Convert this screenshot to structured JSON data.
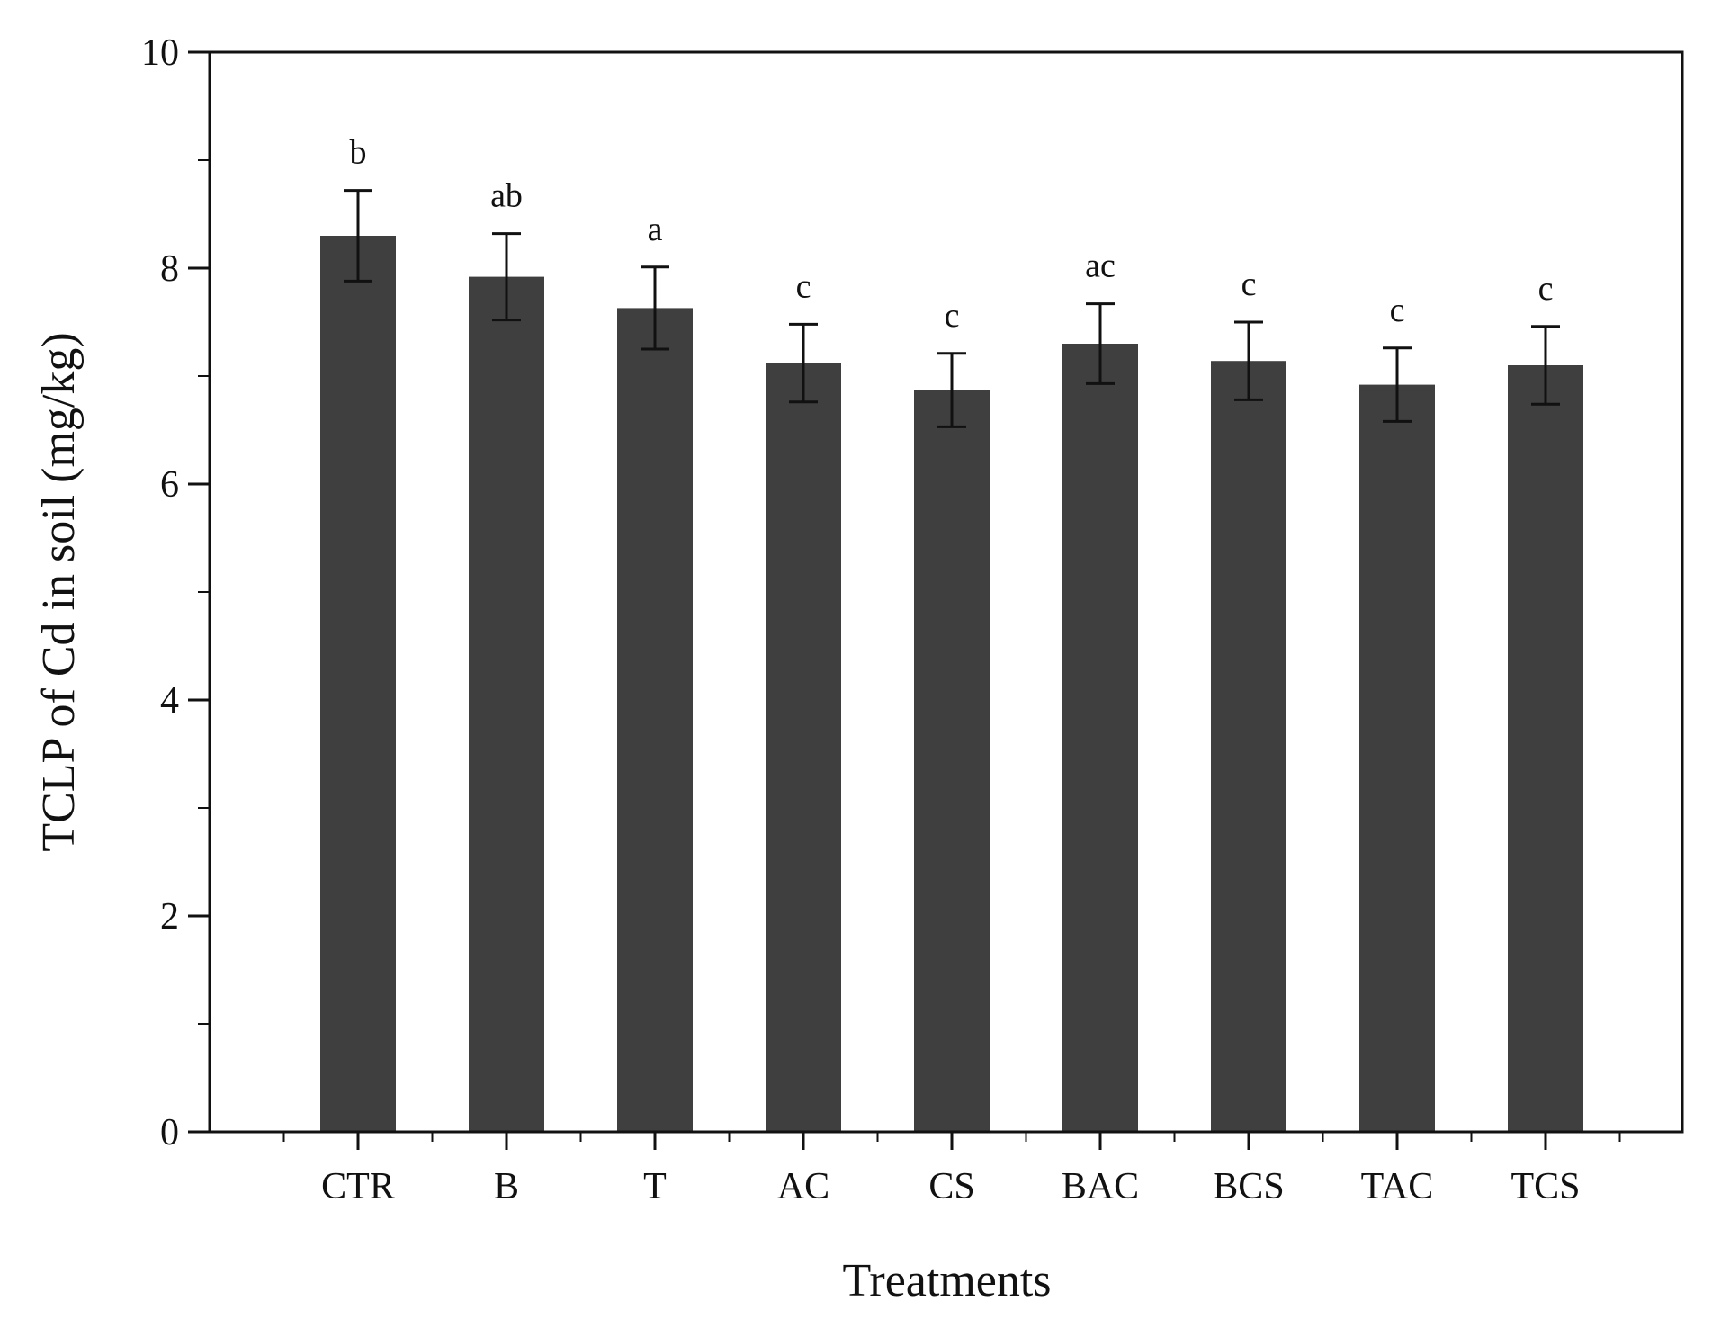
{
  "chart_data": {
    "type": "bar",
    "categories": [
      "CTR",
      "B",
      "T",
      "AC",
      "CS",
      "BAC",
      "BCS",
      "TAC",
      "TCS"
    ],
    "values": [
      8.3,
      7.92,
      7.63,
      7.12,
      6.87,
      7.3,
      7.14,
      6.92,
      7.1
    ],
    "errors": [
      0.42,
      0.4,
      0.38,
      0.36,
      0.34,
      0.37,
      0.36,
      0.34,
      0.36
    ],
    "significance": [
      "b",
      "ab",
      "a",
      "c",
      "c",
      "ac",
      "c",
      "c",
      "c"
    ],
    "xlabel": "Treatments",
    "ylabel": "TCLP of Cd in soil (mg/kg)",
    "ylim": [
      0,
      10
    ],
    "yticks": [
      0,
      2,
      4,
      6,
      8,
      10
    ],
    "ytick_labels": [
      "0",
      "2",
      "4",
      "6",
      "8",
      "10"
    ],
    "grid": false,
    "colors": {
      "bar": "#3f3f3f",
      "axis": "#111111"
    }
  }
}
